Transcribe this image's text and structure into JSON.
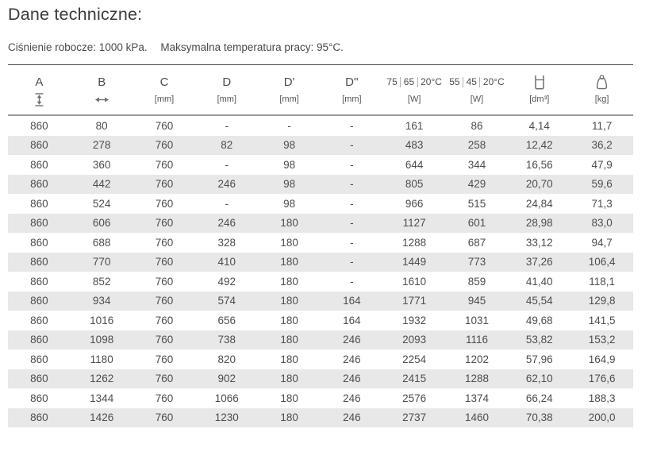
{
  "page": {
    "title": "Dane techniczne:",
    "subtitle_pressure": "Ciśnienie robocze: 1000 kPa.",
    "subtitle_temperature": "Maksymalna temperatura pracy: 95°C."
  },
  "table": {
    "columns": [
      {
        "name": "A",
        "label": "A",
        "sub_icon": "height-arrow-icon"
      },
      {
        "name": "B",
        "label": "B",
        "sub_icon": "width-arrow-icon"
      },
      {
        "name": "C",
        "label": "C",
        "sub": "[mm]"
      },
      {
        "name": "D",
        "label": "D",
        "sub": "[mm]"
      },
      {
        "name": "D-prime",
        "label": "D'",
        "sub": "[mm]"
      },
      {
        "name": "D-second",
        "label": "D''",
        "sub": "[mm]"
      },
      {
        "name": "power-75-65-20",
        "label_parts": [
          "75",
          "65",
          "20°C"
        ],
        "sub": "[W]"
      },
      {
        "name": "power-55-45-20",
        "label_parts": [
          "55",
          "45",
          "20°C"
        ],
        "sub": "[W]"
      },
      {
        "name": "volume",
        "icon": "volume-container-icon",
        "sub": "[dm³]"
      },
      {
        "name": "weight",
        "icon": "weight-bag-icon",
        "sub": "[kg]"
      }
    ],
    "rows": [
      [
        "860",
        "80",
        "760",
        "-",
        "-",
        "-",
        "161",
        "86",
        "4,14",
        "11,7"
      ],
      [
        "860",
        "278",
        "760",
        "82",
        "98",
        "-",
        "483",
        "258",
        "12,42",
        "36,2"
      ],
      [
        "860",
        "360",
        "760",
        "-",
        "98",
        "-",
        "644",
        "344",
        "16,56",
        "47,9"
      ],
      [
        "860",
        "442",
        "760",
        "246",
        "98",
        "-",
        "805",
        "429",
        "20,70",
        "59,6"
      ],
      [
        "860",
        "524",
        "760",
        "-",
        "98",
        "-",
        "966",
        "515",
        "24,84",
        "71,3"
      ],
      [
        "860",
        "606",
        "760",
        "246",
        "180",
        "-",
        "1127",
        "601",
        "28,98",
        "83,0"
      ],
      [
        "860",
        "688",
        "760",
        "328",
        "180",
        "-",
        "1288",
        "687",
        "33,12",
        "94,7"
      ],
      [
        "860",
        "770",
        "760",
        "410",
        "180",
        "-",
        "1449",
        "773",
        "37,26",
        "106,4"
      ],
      [
        "860",
        "852",
        "760",
        "492",
        "180",
        "-",
        "1610",
        "859",
        "41,40",
        "118,1"
      ],
      [
        "860",
        "934",
        "760",
        "574",
        "180",
        "164",
        "1771",
        "945",
        "45,54",
        "129,8"
      ],
      [
        "860",
        "1016",
        "760",
        "656",
        "180",
        "164",
        "1932",
        "1031",
        "49,68",
        "141,5"
      ],
      [
        "860",
        "1098",
        "760",
        "738",
        "180",
        "246",
        "2093",
        "1116",
        "53,82",
        "153,2"
      ],
      [
        "860",
        "1180",
        "760",
        "820",
        "180",
        "246",
        "2254",
        "1202",
        "57,96",
        "164,9"
      ],
      [
        "860",
        "1262",
        "760",
        "902",
        "180",
        "246",
        "2415",
        "1288",
        "62,10",
        "176,6"
      ],
      [
        "860",
        "1344",
        "760",
        "1066",
        "180",
        "246",
        "2576",
        "1374",
        "66,24",
        "188,3"
      ],
      [
        "860",
        "1426",
        "760",
        "1230",
        "180",
        "246",
        "2737",
        "1460",
        "70,38",
        "200,0"
      ]
    ],
    "colors": {
      "row_stripe": "#e8e8e8",
      "body_text": "#4d4d4d",
      "title_text": "#3b3b3b",
      "rule_dark": "#4b4b4b",
      "rule_light": "#9c9c9c",
      "icon_stroke": "#6f6f6f"
    }
  }
}
